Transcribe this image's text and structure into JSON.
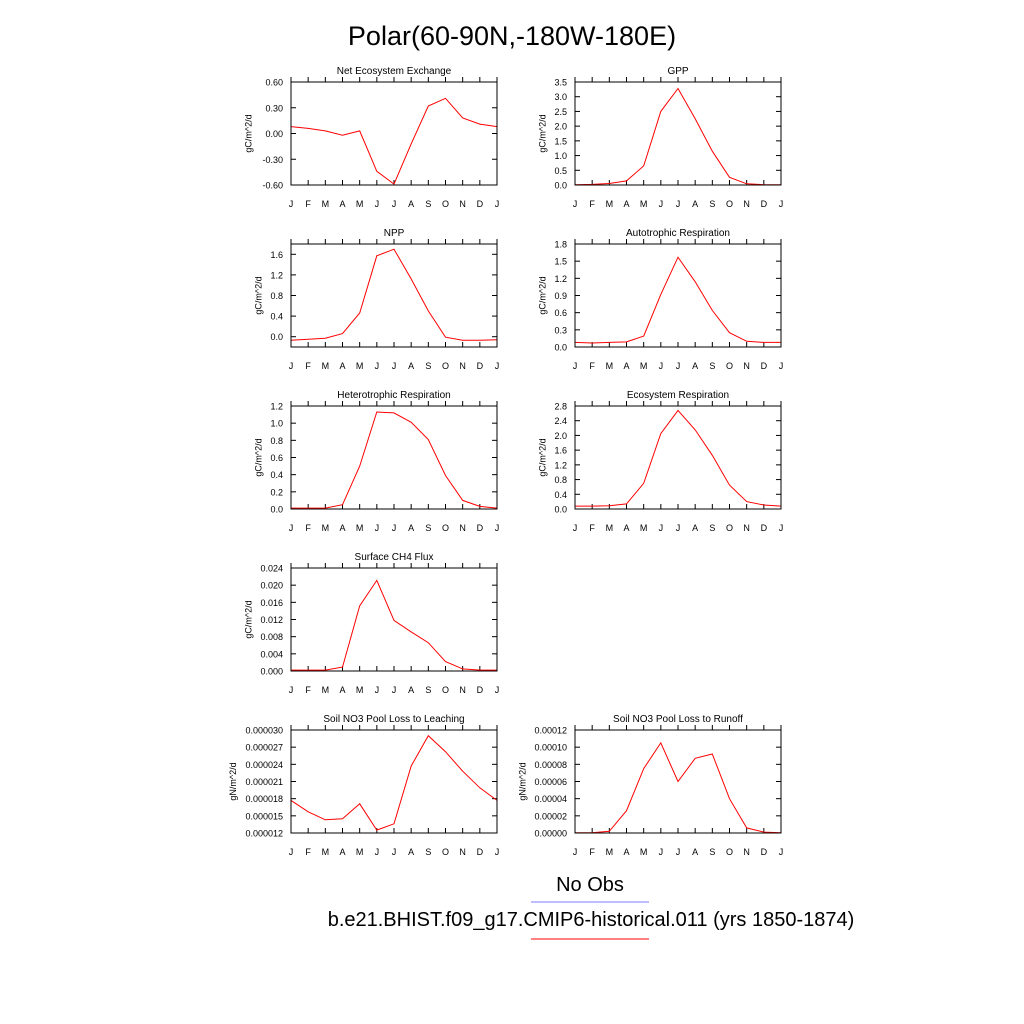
{
  "page_title": "Polar(60-90N,-180W-180E)",
  "legend": {
    "entries": [
      {
        "label": "No Obs",
        "color": "#7b7bff"
      },
      {
        "label": "b.e21.BHIST.f09_g17.CMIP6-historical.011 (yrs 1850-1874)",
        "color": "#ff0000"
      }
    ]
  },
  "chart_data": [
    {
      "type": "line",
      "title": "Net Ecosystem Exchange",
      "ylabel": "gC/m^2/d",
      "x": [
        "J",
        "F",
        "M",
        "A",
        "M",
        "J",
        "J",
        "A",
        "S",
        "O",
        "N",
        "D",
        "J"
      ],
      "ylim": [
        -0.6,
        0.6
      ],
      "yticks": [
        "-0.60",
        "-0.30",
        "0.00",
        "0.30",
        "0.60"
      ],
      "series": [
        {
          "color": "#ff0000",
          "values": [
            0.08,
            0.06,
            0.03,
            -0.02,
            0.03,
            -0.44,
            -0.59,
            -0.12,
            0.32,
            0.41,
            0.18,
            0.11,
            0.08
          ]
        }
      ]
    },
    {
      "type": "line",
      "title": "GPP",
      "ylabel": "gC/m^2/d",
      "x": [
        "J",
        "F",
        "M",
        "A",
        "M",
        "J",
        "J",
        "A",
        "S",
        "O",
        "N",
        "D",
        "J"
      ],
      "ylim": [
        0,
        3.5
      ],
      "yticks": [
        "0.0",
        "0.5",
        "1.0",
        "1.5",
        "2.0",
        "2.5",
        "3.0",
        "3.5"
      ],
      "series": [
        {
          "color": "#ff0000",
          "values": [
            0.01,
            0.02,
            0.05,
            0.14,
            0.65,
            2.5,
            3.28,
            2.25,
            1.15,
            0.26,
            0.04,
            0.01,
            0.01
          ]
        }
      ]
    },
    {
      "type": "line",
      "title": "NPP",
      "ylabel": "gC/m^2/d",
      "x": [
        "J",
        "F",
        "M",
        "A",
        "M",
        "J",
        "J",
        "A",
        "S",
        "O",
        "N",
        "D",
        "J"
      ],
      "ylim": [
        -0.2,
        1.8
      ],
      "yticks": [
        "0.0",
        "0.4",
        "0.8",
        "1.2",
        "1.6"
      ],
      "series": [
        {
          "color": "#ff0000",
          "values": [
            -0.07,
            -0.05,
            -0.03,
            0.06,
            0.46,
            1.57,
            1.7,
            1.12,
            0.5,
            -0.01,
            -0.07,
            -0.07,
            -0.06
          ]
        }
      ]
    },
    {
      "type": "line",
      "title": "Autotrophic Respiration",
      "ylabel": "gC/m^2/d",
      "x": [
        "J",
        "F",
        "M",
        "A",
        "M",
        "J",
        "J",
        "A",
        "S",
        "O",
        "N",
        "D",
        "J"
      ],
      "ylim": [
        0,
        1.8
      ],
      "yticks": [
        "0.0",
        "0.3",
        "0.6",
        "0.9",
        "1.2",
        "1.5",
        "1.8"
      ],
      "series": [
        {
          "color": "#ff0000",
          "values": [
            0.08,
            0.07,
            0.08,
            0.09,
            0.19,
            0.92,
            1.57,
            1.14,
            0.64,
            0.25,
            0.1,
            0.08,
            0.08
          ]
        }
      ]
    },
    {
      "type": "line",
      "title": "Heterotrophic Respiration",
      "ylabel": "gC/m^2/d",
      "x": [
        "J",
        "F",
        "M",
        "A",
        "M",
        "J",
        "J",
        "A",
        "S",
        "O",
        "N",
        "D",
        "J"
      ],
      "ylim": [
        0,
        1.2
      ],
      "yticks": [
        "0.0",
        "0.2",
        "0.4",
        "0.6",
        "0.8",
        "1.0",
        "1.2"
      ],
      "series": [
        {
          "color": "#ff0000",
          "values": [
            0.01,
            0.01,
            0.01,
            0.05,
            0.5,
            1.13,
            1.12,
            1.01,
            0.81,
            0.39,
            0.1,
            0.03,
            0.01
          ]
        }
      ]
    },
    {
      "type": "line",
      "title": "Ecosystem Respiration",
      "ylabel": "gC/m^2/d",
      "x": [
        "J",
        "F",
        "M",
        "A",
        "M",
        "J",
        "J",
        "A",
        "S",
        "O",
        "N",
        "D",
        "J"
      ],
      "ylim": [
        0,
        2.8
      ],
      "yticks": [
        "0.0",
        "0.4",
        "0.8",
        "1.2",
        "1.6",
        "2.0",
        "2.4",
        "2.8"
      ],
      "series": [
        {
          "color": "#ff0000",
          "values": [
            0.08,
            0.08,
            0.09,
            0.14,
            0.7,
            2.05,
            2.68,
            2.15,
            1.46,
            0.65,
            0.2,
            0.11,
            0.08
          ]
        }
      ]
    },
    {
      "type": "line",
      "title": "Surface CH4 Flux",
      "ylabel": "gC/m^2/d",
      "x": [
        "J",
        "F",
        "M",
        "A",
        "M",
        "J",
        "J",
        "A",
        "S",
        "O",
        "N",
        "D",
        "J"
      ],
      "ylim": [
        0,
        0.024
      ],
      "yticks": [
        "0.000",
        "0.004",
        "0.008",
        "0.012",
        "0.016",
        "0.020",
        "0.024"
      ],
      "series": [
        {
          "color": "#ff0000",
          "values": [
            0.0002,
            0.0002,
            0.0002,
            0.0009,
            0.0152,
            0.0211,
            0.0118,
            0.0091,
            0.0066,
            0.0022,
            0.0005,
            0.0002,
            0.0002
          ]
        }
      ]
    },
    {
      "type": "line",
      "title": "Soil NO3 Pool Loss to Leaching",
      "ylabel": "gN/m^2/d",
      "x": [
        "J",
        "F",
        "M",
        "A",
        "M",
        "J",
        "J",
        "A",
        "S",
        "O",
        "N",
        "D",
        "J"
      ],
      "ylim": [
        1.2e-05,
        3e-05
      ],
      "yticks": [
        "0.000012",
        "0.000015",
        "0.000018",
        "0.000021",
        "0.000024",
        "0.000027",
        "0.000030"
      ],
      "series": [
        {
          "color": "#ff0000",
          "values": [
            1.77e-05,
            1.57e-05,
            1.43e-05,
            1.45e-05,
            1.71e-05,
            1.25e-05,
            1.36e-05,
            2.37e-05,
            2.9e-05,
            2.62e-05,
            2.28e-05,
            1.99e-05,
            1.77e-05
          ]
        }
      ]
    },
    {
      "type": "line",
      "title": "Soil NO3 Pool Loss to Runoff",
      "ylabel": "gN/m^2/d",
      "x": [
        "J",
        "F",
        "M",
        "A",
        "M",
        "J",
        "J",
        "A",
        "S",
        "O",
        "N",
        "D",
        "J"
      ],
      "ylim": [
        0,
        0.00012
      ],
      "yticks": [
        "0.00000",
        "0.00002",
        "0.00004",
        "0.00006",
        "0.00008",
        "0.00010",
        "0.00012"
      ],
      "series": [
        {
          "color": "#ff0000",
          "values": [
            3e-07,
            3e-07,
            2e-06,
            2.6e-05,
            7.5e-05,
            0.000105,
            6e-05,
            8.7e-05,
            9.2e-05,
            4e-05,
            6e-06,
            1e-06,
            3e-07
          ]
        }
      ]
    }
  ]
}
